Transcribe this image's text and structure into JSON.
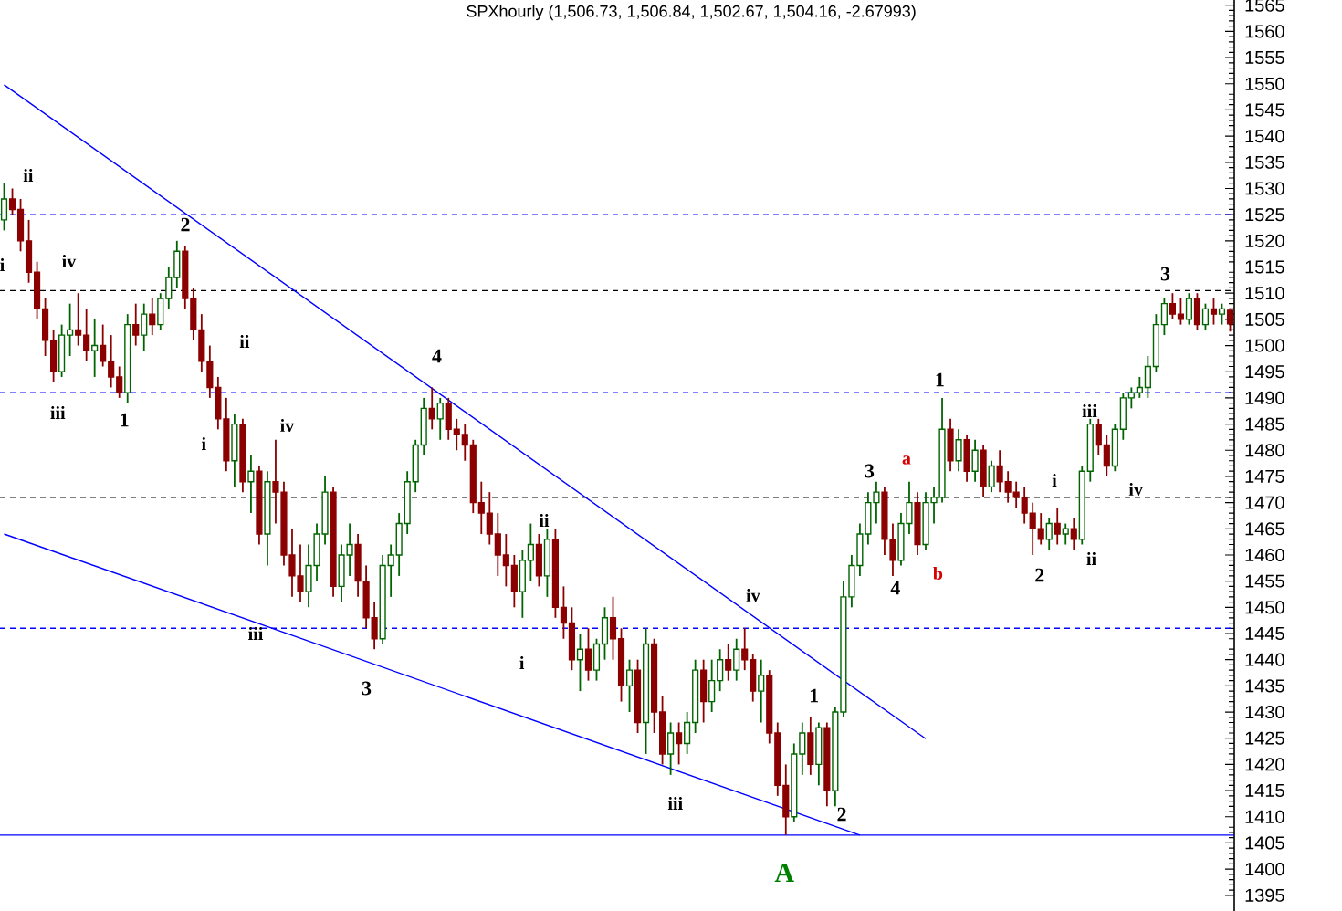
{
  "chart_data": {
    "type": "candlestick",
    "title": "SPXhourly (1,506.73, 1,506.84, 1,502.67, 1,504.16, -2.67993)",
    "categories": [
      null,
      null,
      null,
      null,
      null,
      null,
      null,
      null,
      null,
      null,
      null,
      null,
      null,
      null,
      null,
      null,
      null,
      null,
      null,
      null,
      null,
      null,
      null,
      null,
      null,
      null,
      null,
      null,
      null,
      null,
      null,
      null,
      null,
      null,
      null,
      null,
      null,
      null,
      null,
      null,
      null,
      null,
      null,
      null,
      null,
      null,
      null,
      null,
      null,
      null,
      null,
      null,
      null,
      null,
      null,
      null,
      null,
      null,
      null,
      null,
      null,
      null,
      null,
      null,
      null,
      null,
      null,
      null,
      null,
      null,
      null,
      null,
      null,
      null,
      null,
      null,
      null,
      null,
      null,
      null,
      null,
      null,
      null,
      null,
      null,
      null,
      null,
      null,
      null,
      null,
      null,
      null,
      null,
      null,
      null,
      null,
      null,
      null,
      null,
      null,
      null,
      null,
      null,
      null,
      null,
      null,
      null,
      null,
      null,
      null,
      null,
      null,
      null,
      null,
      null,
      null,
      null,
      null,
      null,
      null,
      null,
      null,
      null,
      null,
      null,
      null,
      null,
      null,
      null,
      null,
      null,
      null,
      null,
      null,
      null,
      null,
      null,
      null,
      null,
      null,
      null,
      null,
      null,
      null,
      null,
      null,
      null,
      null,
      null,
      null
    ],
    "ohlc": [
      [
        1524,
        1531,
        1522,
        1528
      ],
      [
        1528,
        1530,
        1525,
        1526
      ],
      [
        1526,
        1528,
        1518,
        1520
      ],
      [
        1520,
        1524,
        1512,
        1514
      ],
      [
        1514,
        1516,
        1505,
        1507
      ],
      [
        1507,
        1509,
        1498,
        1501
      ],
      [
        1501,
        1503,
        1493,
        1495
      ],
      [
        1495,
        1504,
        1494,
        1502
      ],
      [
        1502,
        1508,
        1498,
        1503
      ],
      [
        1503,
        1510,
        1500,
        1502
      ],
      [
        1502,
        1507,
        1497,
        1499
      ],
      [
        1499,
        1505,
        1494,
        1500
      ],
      [
        1500,
        1504,
        1496,
        1497
      ],
      [
        1497,
        1502,
        1492,
        1494
      ],
      [
        1494,
        1496,
        1490,
        1491
      ],
      [
        1491,
        1506,
        1489,
        1504
      ],
      [
        1504,
        1508,
        1500,
        1502
      ],
      [
        1502,
        1508,
        1499,
        1506
      ],
      [
        1506,
        1509,
        1502,
        1504
      ],
      [
        1504,
        1510,
        1503,
        1509
      ],
      [
        1509,
        1515,
        1507,
        1513
      ],
      [
        1513,
        1520,
        1511,
        1518
      ],
      [
        1518,
        1519,
        1507,
        1509
      ],
      [
        1509,
        1511,
        1501,
        1503
      ],
      [
        1503,
        1506,
        1495,
        1497
      ],
      [
        1497,
        1500,
        1490,
        1492
      ],
      [
        1492,
        1494,
        1484,
        1486
      ],
      [
        1486,
        1490,
        1476,
        1478
      ],
      [
        1478,
        1487,
        1473,
        1485
      ],
      [
        1485,
        1486,
        1472,
        1474
      ],
      [
        1474,
        1479,
        1468,
        1476
      ],
      [
        1476,
        1477,
        1462,
        1464
      ],
      [
        1464,
        1476,
        1458,
        1474
      ],
      [
        1474,
        1482,
        1466,
        1472
      ],
      [
        1472,
        1474,
        1458,
        1460
      ],
      [
        1460,
        1465,
        1452,
        1456
      ],
      [
        1456,
        1462,
        1451,
        1453
      ],
      [
        1453,
        1462,
        1450,
        1458
      ],
      [
        1458,
        1466,
        1455,
        1464
      ],
      [
        1464,
        1475,
        1462,
        1472
      ],
      [
        1472,
        1473,
        1452,
        1454
      ],
      [
        1454,
        1462,
        1451,
        1460
      ],
      [
        1460,
        1466,
        1456,
        1462
      ],
      [
        1462,
        1464,
        1452,
        1455
      ],
      [
        1455,
        1458,
        1446,
        1448
      ],
      [
        1448,
        1451,
        1442,
        1444
      ],
      [
        1444,
        1460,
        1443,
        1458
      ],
      [
        1458,
        1462,
        1452,
        1460
      ],
      [
        1460,
        1468,
        1456,
        1466
      ],
      [
        1466,
        1476,
        1464,
        1474
      ],
      [
        1474,
        1482,
        1472,
        1481
      ],
      [
        1481,
        1490,
        1479,
        1488
      ],
      [
        1488,
        1492,
        1484,
        1486
      ],
      [
        1486,
        1490,
        1482,
        1489
      ],
      [
        1489,
        1490,
        1482,
        1484
      ],
      [
        1484,
        1486,
        1480,
        1483
      ],
      [
        1483,
        1485,
        1478,
        1481
      ],
      [
        1481,
        1482,
        1468,
        1470
      ],
      [
        1470,
        1474,
        1464,
        1468
      ],
      [
        1468,
        1472,
        1462,
        1464
      ],
      [
        1464,
        1468,
        1456,
        1460
      ],
      [
        1460,
        1464,
        1454,
        1458
      ],
      [
        1458,
        1460,
        1450,
        1453
      ],
      [
        1453,
        1461,
        1448,
        1459
      ],
      [
        1459,
        1466,
        1455,
        1462
      ],
      [
        1462,
        1464,
        1454,
        1456
      ],
      [
        1456,
        1465,
        1452,
        1463
      ],
      [
        1463,
        1465,
        1448,
        1450
      ],
      [
        1450,
        1454,
        1444,
        1447
      ],
      [
        1447,
        1450,
        1438,
        1440
      ],
      [
        1440,
        1445,
        1434,
        1442
      ],
      [
        1442,
        1446,
        1436,
        1438
      ],
      [
        1438,
        1444,
        1436,
        1443
      ],
      [
        1443,
        1450,
        1440,
        1448
      ],
      [
        1448,
        1452,
        1440,
        1444
      ],
      [
        1444,
        1446,
        1432,
        1435
      ],
      [
        1435,
        1440,
        1430,
        1438
      ],
      [
        1438,
        1440,
        1426,
        1428
      ],
      [
        1428,
        1446,
        1422,
        1443
      ],
      [
        1443,
        1444,
        1426,
        1430
      ],
      [
        1430,
        1433,
        1420,
        1422
      ],
      [
        1422,
        1428,
        1418,
        1426
      ],
      [
        1426,
        1428,
        1420,
        1424
      ],
      [
        1424,
        1430,
        1422,
        1428
      ],
      [
        1428,
        1440,
        1426,
        1438
      ],
      [
        1438,
        1440,
        1428,
        1432
      ],
      [
        1432,
        1440,
        1430,
        1436
      ],
      [
        1436,
        1442,
        1434,
        1440
      ],
      [
        1440,
        1443,
        1436,
        1438
      ],
      [
        1438,
        1444,
        1436,
        1442
      ],
      [
        1442,
        1446,
        1438,
        1440
      ],
      [
        1440,
        1441,
        1432,
        1434
      ],
      [
        1434,
        1440,
        1428,
        1437
      ],
      [
        1437,
        1438,
        1424,
        1426
      ],
      [
        1426,
        1428,
        1414,
        1416
      ],
      [
        1416,
        1420,
        1406.5,
        1410
      ],
      [
        1410,
        1424,
        1409,
        1422
      ],
      [
        1422,
        1428,
        1418,
        1426
      ],
      [
        1426,
        1429,
        1418,
        1420
      ],
      [
        1420,
        1428,
        1416,
        1427
      ],
      [
        1427,
        1428,
        1412,
        1415
      ],
      [
        1415,
        1431,
        1412,
        1430
      ],
      [
        1430,
        1455,
        1429,
        1452
      ],
      [
        1452,
        1460,
        1450,
        1458
      ],
      [
        1458,
        1466,
        1456,
        1464
      ],
      [
        1464,
        1472,
        1462,
        1470
      ],
      [
        1470,
        1474,
        1466,
        1472
      ],
      [
        1472,
        1473,
        1460,
        1463
      ],
      [
        1463,
        1466,
        1456,
        1459
      ],
      [
        1459,
        1468,
        1458,
        1466
      ],
      [
        1466,
        1474,
        1464,
        1470
      ],
      [
        1470,
        1472,
        1460,
        1462
      ],
      [
        1462,
        1472,
        1461,
        1470
      ],
      [
        1470,
        1473,
        1466,
        1471
      ],
      [
        1471,
        1490,
        1470,
        1484
      ],
      [
        1484,
        1486,
        1476,
        1478
      ],
      [
        1478,
        1484,
        1476,
        1482
      ],
      [
        1482,
        1483,
        1474,
        1476
      ],
      [
        1476,
        1482,
        1474,
        1480
      ],
      [
        1480,
        1481,
        1471,
        1473
      ],
      [
        1473,
        1478,
        1472,
        1477
      ],
      [
        1477,
        1480,
        1472,
        1474
      ],
      [
        1474,
        1476,
        1470,
        1472
      ],
      [
        1472,
        1474,
        1469,
        1471
      ],
      [
        1471,
        1473,
        1466,
        1468
      ],
      [
        1468,
        1470,
        1460,
        1465
      ],
      [
        1465,
        1468,
        1462,
        1463
      ],
      [
        1463,
        1467,
        1461,
        1466
      ],
      [
        1466,
        1469,
        1462,
        1464
      ],
      [
        1464,
        1466,
        1462,
        1465
      ],
      [
        1465,
        1467,
        1461,
        1463
      ],
      [
        1463,
        1477,
        1462,
        1476
      ],
      [
        1476,
        1486,
        1474,
        1485
      ],
      [
        1485,
        1486,
        1479,
        1481
      ],
      [
        1481,
        1483,
        1475,
        1477
      ],
      [
        1477,
        1485,
        1476,
        1484
      ],
      [
        1484,
        1491,
        1482,
        1490
      ],
      [
        1490,
        1492,
        1488,
        1491
      ],
      [
        1491,
        1494,
        1490,
        1492
      ],
      [
        1492,
        1498,
        1490,
        1496
      ],
      [
        1496,
        1506,
        1495,
        1504
      ],
      [
        1504,
        1509,
        1502,
        1508
      ],
      [
        1508,
        1510,
        1505,
        1506
      ],
      [
        1506,
        1509,
        1504,
        1505
      ],
      [
        1505,
        1510,
        1504,
        1509
      ],
      [
        1509,
        1510,
        1503,
        1504
      ],
      [
        1504,
        1508,
        1503,
        1507
      ],
      [
        1507,
        1509,
        1504,
        1506
      ],
      [
        1506,
        1508,
        1504,
        1507
      ],
      [
        1506.73,
        1506.84,
        1502.67,
        1504.16
      ]
    ],
    "series": [
      {
        "type": "line",
        "color": "#0000ff",
        "values": [
          1549.8,
          null,
          null,
          null,
          null,
          null,
          null,
          null,
          null,
          null,
          null,
          null,
          null,
          null,
          null,
          null,
          null,
          null,
          null,
          null,
          null,
          null,
          null,
          null,
          null,
          null,
          null,
          null,
          null,
          null,
          null,
          null,
          null,
          null,
          null,
          null,
          null,
          null,
          null,
          null,
          null,
          null,
          null,
          null,
          null,
          null,
          null,
          null,
          null,
          null,
          null,
          null,
          null,
          null,
          null,
          null,
          null,
          null,
          null,
          null,
          null,
          null,
          null,
          null,
          null,
          null,
          null,
          null,
          null,
          null,
          null,
          null,
          null,
          null,
          null,
          null,
          null,
          null,
          null,
          null,
          null,
          null,
          null,
          null,
          null,
          null,
          null,
          null,
          null,
          null,
          null,
          null,
          null,
          null,
          null,
          null,
          null,
          null,
          null,
          null,
          null,
          null,
          null,
          null,
          null,
          null,
          null,
          null,
          null,
          null,
          null,
          null,
          1424.9,
          null,
          null,
          null,
          null,
          null,
          null,
          null,
          null,
          null,
          null,
          null,
          null,
          null,
          null,
          null,
          null,
          null,
          null,
          null,
          null,
          null,
          null,
          null,
          null,
          null,
          null,
          null,
          null,
          null,
          null,
          null,
          null,
          null,
          null,
          null,
          null,
          null
        ]
      },
      {
        "type": "line",
        "color": "#0000ff",
        "values": [
          1464.0,
          null,
          null,
          null,
          null,
          null,
          null,
          null,
          null,
          null,
          null,
          null,
          null,
          null,
          null,
          null,
          null,
          null,
          null,
          null,
          null,
          null,
          null,
          null,
          null,
          null,
          null,
          null,
          null,
          null,
          null,
          null,
          null,
          null,
          null,
          null,
          null,
          null,
          null,
          null,
          null,
          null,
          null,
          null,
          null,
          null,
          null,
          null,
          null,
          null,
          null,
          null,
          null,
          null,
          null,
          null,
          null,
          null,
          null,
          null,
          null,
          null,
          null,
          null,
          null,
          null,
          null,
          null,
          null,
          null,
          null,
          null,
          null,
          null,
          null,
          null,
          null,
          null,
          null,
          null,
          null,
          null,
          null,
          null,
          null,
          null,
          null,
          null,
          null,
          null,
          null,
          null,
          null,
          null,
          null,
          null,
          null,
          null,
          null,
          null,
          null,
          null,
          null,
          null,
          1406.5,
          null,
          null,
          null,
          null,
          null,
          null,
          null,
          null,
          null,
          null,
          null,
          null,
          null,
          null,
          null,
          null,
          null,
          null,
          null,
          null,
          null,
          null,
          null,
          null,
          null,
          null,
          null,
          null,
          null,
          null,
          null,
          null,
          null,
          null,
          null,
          null,
          null,
          null,
          null,
          null,
          null,
          null,
          null,
          null,
          null
        ]
      }
    ],
    "ylim": [
      1392,
      1566
    ],
    "yticks": [
      1395,
      1400,
      1405,
      1410,
      1415,
      1420,
      1425,
      1430,
      1435,
      1440,
      1445,
      1450,
      1455,
      1460,
      1465,
      1470,
      1475,
      1480,
      1485,
      1490,
      1495,
      1500,
      1505,
      1510,
      1515,
      1520,
      1525,
      1530,
      1535,
      1540,
      1545,
      1550,
      1555,
      1560,
      1565
    ],
    "tick_labels": "y",
    "ref_lines": [
      {
        "axis": "y",
        "value": 1525,
        "color": "#0000ff",
        "line_style": "dashed"
      },
      {
        "axis": "y",
        "value": 1510.5,
        "color": "#000000",
        "line_style": "dashed"
      },
      {
        "axis": "y",
        "value": 1491,
        "color": "#0000ff",
        "line_style": "dashed"
      },
      {
        "axis": "y",
        "value": 1471,
        "color": "#000000",
        "line_style": "dashed"
      },
      {
        "axis": "y",
        "value": 1446,
        "color": "#0000ff",
        "line_style": "dashed"
      },
      {
        "axis": "y",
        "value": 1406.5,
        "color": "#0000ff",
        "line_style": "solid"
      }
    ],
    "annotations": [
      "ii",
      "i",
      "iv",
      "iii",
      "1",
      "2",
      "ii",
      "i",
      "iv",
      "4",
      "iii",
      "3",
      "ii",
      "i",
      "iv",
      "iii",
      "1",
      "2",
      "A",
      "3",
      "a",
      "4",
      "b",
      "1",
      "i",
      "2",
      "ii",
      "iii",
      "iv",
      "3"
    ]
  }
}
